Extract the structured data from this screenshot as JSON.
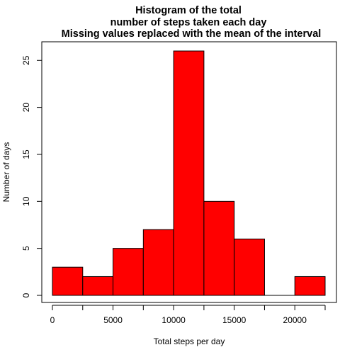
{
  "chart_data": {
    "type": "bar",
    "title_lines": [
      "Histogram of the total",
      "number of steps taken each day",
      "Missing values replaced with the mean of the interval"
    ],
    "xlabel": "Total steps per day",
    "ylabel": "Number of days",
    "bins": [
      {
        "from": 0,
        "to": 2500,
        "count": 3
      },
      {
        "from": 2500,
        "to": 5000,
        "count": 2
      },
      {
        "from": 5000,
        "to": 7500,
        "count": 5
      },
      {
        "from": 7500,
        "to": 10000,
        "count": 7
      },
      {
        "from": 10000,
        "to": 12500,
        "count": 26
      },
      {
        "from": 12500,
        "to": 15000,
        "count": 10
      },
      {
        "from": 15000,
        "to": 17500,
        "count": 6
      },
      {
        "from": 17500,
        "to": 20000,
        "count": 0
      },
      {
        "from": 20000,
        "to": 22500,
        "count": 2
      }
    ],
    "x_ticks": [
      0,
      5000,
      10000,
      15000,
      20000
    ],
    "x_minor_ticks": [
      2500,
      7500,
      12500,
      17500,
      22500
    ],
    "y_ticks": [
      0,
      5,
      10,
      15,
      20,
      25
    ],
    "xlim": [
      0,
      22500
    ],
    "ylim": [
      0,
      26
    ],
    "bar_color": "#ff0000",
    "bar_border_color": "#000000",
    "grid": false,
    "box": true
  }
}
